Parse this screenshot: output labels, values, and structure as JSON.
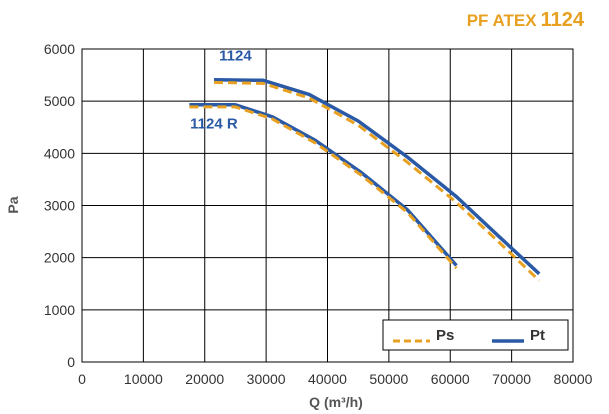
{
  "header": {
    "title_prefix": "PF ATEX",
    "title_model": "1124"
  },
  "colors": {
    "brand_orange": "#e8a020",
    "pt_blue": "#2a59a6",
    "ps_orange": "#e8a020",
    "grid": "#000000",
    "label_blue": "#2a59a6"
  },
  "chart_data": {
    "type": "line",
    "xlabel": "Q (m³/h)",
    "ylabel": "Pa",
    "xlim": [
      0,
      80000
    ],
    "ylim": [
      0,
      6000
    ],
    "x_ticks": [
      0,
      10000,
      20000,
      30000,
      40000,
      50000,
      60000,
      70000,
      80000
    ],
    "y_ticks": [
      0,
      1000,
      2000,
      3000,
      4000,
      5000,
      6000
    ],
    "grid": true,
    "legend": {
      "placement": "bottom-right",
      "entries": [
        "Ps",
        "Pt"
      ]
    },
    "series": [
      {
        "name": "Pt",
        "curve": "1124",
        "style": "solid",
        "points": [
          [
            21500,
            5410
          ],
          [
            29500,
            5400
          ],
          [
            37000,
            5130
          ],
          [
            45000,
            4620
          ],
          [
            53000,
            3930
          ],
          [
            61000,
            3170
          ],
          [
            68000,
            2400
          ],
          [
            74500,
            1690
          ]
        ]
      },
      {
        "name": "Ps",
        "curve": "1124",
        "style": "dashed",
        "points": [
          [
            21500,
            5360
          ],
          [
            29500,
            5340
          ],
          [
            37000,
            5060
          ],
          [
            45000,
            4540
          ],
          [
            53000,
            3830
          ],
          [
            61000,
            3060
          ],
          [
            68000,
            2290
          ],
          [
            74500,
            1560
          ]
        ]
      },
      {
        "name": "Pt",
        "curve": "1124 R",
        "style": "solid",
        "points": [
          [
            17500,
            4930
          ],
          [
            25000,
            4930
          ],
          [
            31000,
            4700
          ],
          [
            38000,
            4250
          ],
          [
            45500,
            3630
          ],
          [
            53000,
            2920
          ],
          [
            61000,
            1850
          ]
        ]
      },
      {
        "name": "Ps",
        "curve": "1124 R",
        "style": "dashed",
        "points": [
          [
            17500,
            4890
          ],
          [
            25000,
            4890
          ],
          [
            31000,
            4660
          ],
          [
            38000,
            4200
          ],
          [
            45500,
            3580
          ],
          [
            53000,
            2870
          ],
          [
            61000,
            1800
          ]
        ]
      }
    ],
    "annotations": [
      {
        "text": "1124",
        "x": 25000,
        "y": 5780
      },
      {
        "text": "1124 R",
        "x": 21500,
        "y": 4480
      }
    ]
  }
}
